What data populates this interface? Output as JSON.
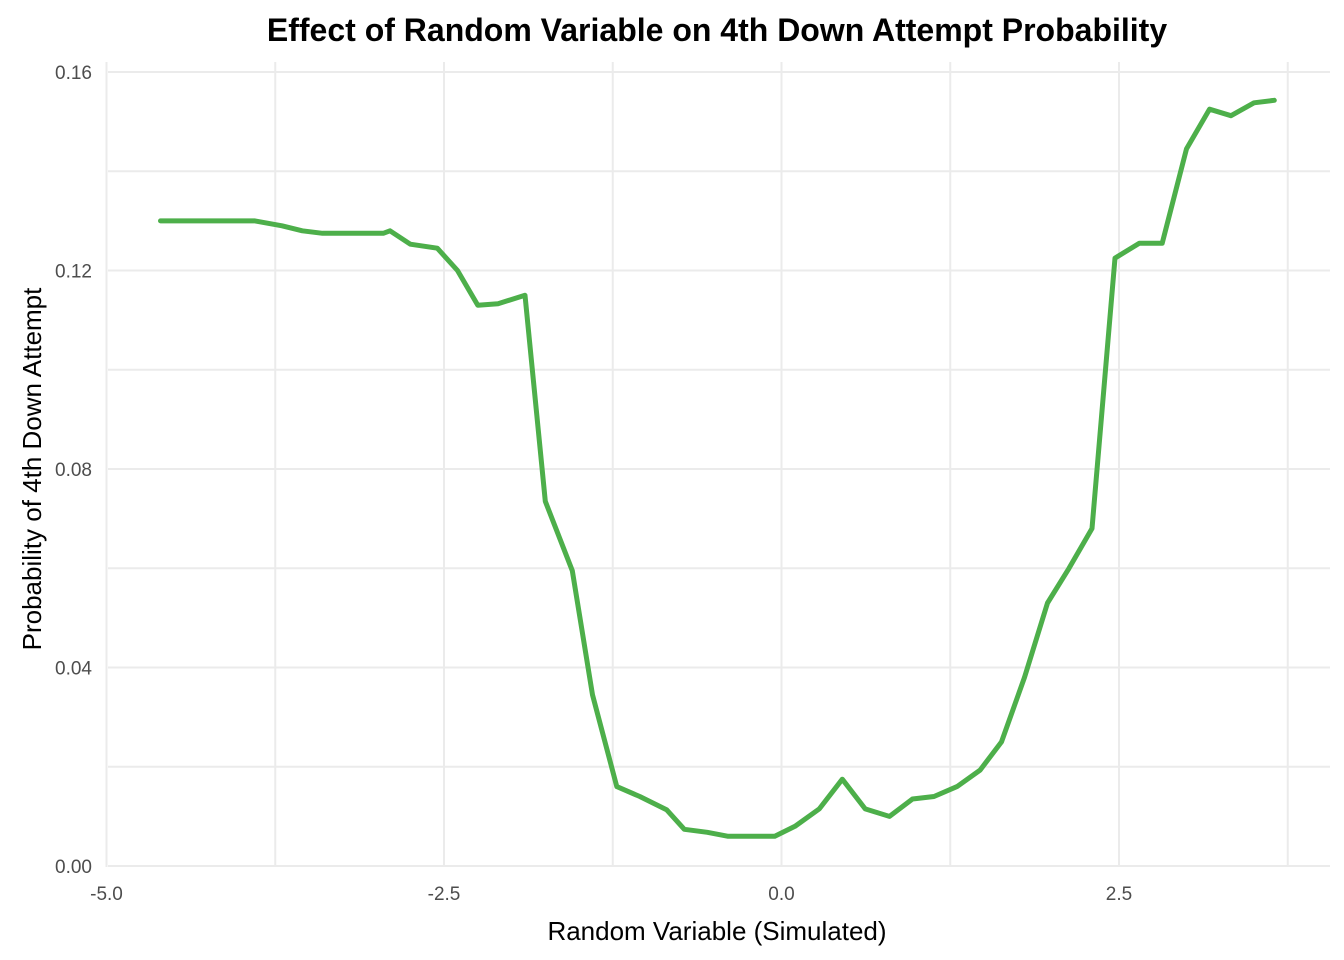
{
  "chart_data": {
    "type": "line",
    "title": "Effect of Random Variable on 4th Down Attempt Probability",
    "xlabel": "Random Variable (Simulated)",
    "ylabel": "Probability of 4th Down Attempt",
    "xlim": [
      -5.0,
      4.05
    ],
    "ylim": [
      0.0,
      0.16
    ],
    "x_ticks": [
      -5.0,
      -2.5,
      0.0,
      2.5
    ],
    "x_tick_labels": [
      "-5.0",
      "-2.5",
      "0.0",
      "2.5"
    ],
    "y_ticks": [
      0.0,
      0.04,
      0.08,
      0.12,
      0.16
    ],
    "y_tick_labels": [
      "0.00",
      "0.04",
      "0.08",
      "0.12",
      "0.16"
    ],
    "grid": true,
    "line_color": "#4daf4a",
    "series": [
      {
        "x": [
          -4.6,
          -4.4,
          -4.2,
          -3.9,
          -3.7,
          -3.55,
          -3.4,
          -3.25,
          -3.1,
          -2.95,
          -2.9,
          -2.75,
          -2.55,
          -2.4,
          -2.25,
          -2.1,
          -1.9,
          -1.75,
          -1.55,
          -1.4,
          -1.22,
          -1.05,
          -0.85,
          -0.72,
          -0.55,
          -0.4,
          -0.25,
          -0.05,
          0.1,
          0.28,
          0.45,
          0.62,
          0.8,
          0.97,
          1.13,
          1.3,
          1.47,
          1.63,
          1.8,
          1.97,
          2.13,
          2.3,
          2.47,
          2.65,
          2.82,
          3.0,
          3.17,
          3.33,
          3.5,
          3.65
        ],
        "y": [
          0.13,
          0.13,
          0.13,
          0.13,
          0.129,
          0.128,
          0.1275,
          0.1275,
          0.1275,
          0.1275,
          0.128,
          0.1253,
          0.1245,
          0.12,
          0.113,
          0.1133,
          0.115,
          0.0735,
          0.0595,
          0.0345,
          0.016,
          0.014,
          0.0113,
          0.0074,
          0.0068,
          0.006,
          0.006,
          0.006,
          0.008,
          0.0115,
          0.0175,
          0.0115,
          0.01,
          0.0135,
          0.014,
          0.016,
          0.0193,
          0.025,
          0.038,
          0.053,
          0.06,
          0.068,
          0.1225,
          0.1255,
          0.1255,
          0.1445,
          0.1525,
          0.1512,
          0.1538,
          0.1543
        ]
      }
    ]
  }
}
